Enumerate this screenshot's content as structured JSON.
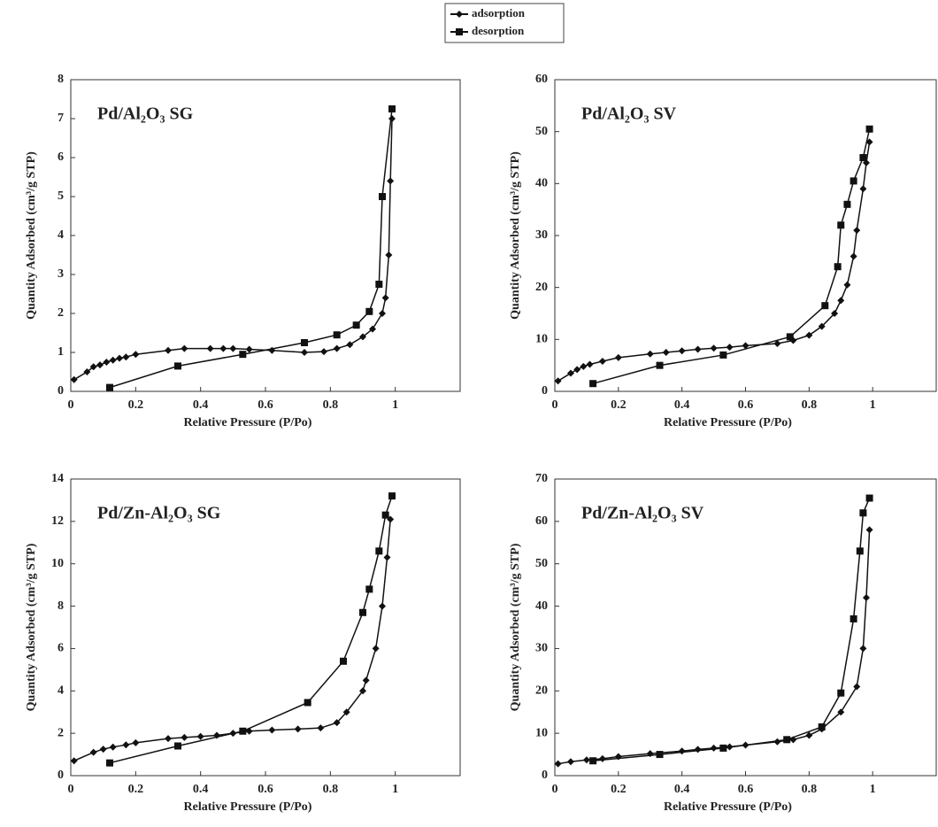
{
  "legend": [
    "adsorption",
    "desorption"
  ],
  "chart_data": [
    {
      "type": "line",
      "title": "Pd/Al₂O₃ SG",
      "x_label": "Relative Pressure (P/Po)",
      "y_label": "Quantity Adsorbed (cm³/g STP)",
      "xlim": [
        0,
        1.2
      ],
      "xticks": [
        0,
        0.2,
        0.4,
        0.6,
        0.8,
        1
      ],
      "ylim": [
        0,
        8
      ],
      "yticks": [
        0,
        1,
        2,
        3,
        4,
        5,
        6,
        7,
        8
      ],
      "series": [
        {
          "name": "adsorption",
          "color": "#111",
          "marker": "diamond",
          "x": [
            0.01,
            0.05,
            0.07,
            0.09,
            0.11,
            0.13,
            0.15,
            0.17,
            0.2,
            0.3,
            0.35,
            0.43,
            0.47,
            0.5,
            0.55,
            0.62,
            0.72,
            0.78,
            0.82,
            0.86,
            0.9,
            0.93,
            0.96,
            0.97,
            0.98,
            0.985,
            0.99
          ],
          "values": [
            0.3,
            0.5,
            0.63,
            0.68,
            0.75,
            0.8,
            0.85,
            0.88,
            0.95,
            1.05,
            1.1,
            1.1,
            1.1,
            1.1,
            1.08,
            1.05,
            1.0,
            1.02,
            1.1,
            1.2,
            1.4,
            1.6,
            2.0,
            2.4,
            3.5,
            5.4,
            7.0
          ]
        },
        {
          "name": "desorption",
          "color": "#111",
          "marker": "square",
          "x": [
            0.12,
            0.33,
            0.53,
            0.72,
            0.82,
            0.88,
            0.92,
            0.95,
            0.96,
            0.99
          ],
          "values": [
            0.1,
            0.65,
            0.95,
            1.25,
            1.45,
            1.7,
            2.05,
            2.75,
            5.0,
            7.25
          ]
        }
      ]
    },
    {
      "type": "line",
      "title": "Pd/Al₂O₃ SV",
      "x_label": "Relative Pressure (P/Po)",
      "y_label": "Quantity Adsorbed (cm³/g STP)",
      "xlim": [
        0,
        1.2
      ],
      "xticks": [
        0,
        0.2,
        0.4,
        0.6,
        0.8,
        1
      ],
      "ylim": [
        0,
        60
      ],
      "yticks": [
        0,
        10,
        20,
        30,
        40,
        50,
        60
      ],
      "series": [
        {
          "name": "adsorption",
          "color": "#111",
          "marker": "diamond",
          "x": [
            0.01,
            0.05,
            0.07,
            0.09,
            0.11,
            0.15,
            0.2,
            0.3,
            0.35,
            0.4,
            0.45,
            0.5,
            0.55,
            0.6,
            0.7,
            0.75,
            0.8,
            0.84,
            0.88,
            0.9,
            0.92,
            0.94,
            0.95,
            0.97,
            0.98,
            0.99
          ],
          "values": [
            2,
            3.5,
            4.2,
            4.8,
            5.2,
            5.8,
            6.5,
            7.2,
            7.5,
            7.8,
            8.1,
            8.3,
            8.5,
            8.8,
            9.2,
            9.8,
            10.8,
            12.5,
            15,
            17.5,
            20.5,
            26,
            31,
            39,
            44,
            48
          ]
        },
        {
          "name": "desorption",
          "color": "#111",
          "marker": "square",
          "x": [
            0.12,
            0.33,
            0.53,
            0.74,
            0.85,
            0.89,
            0.9,
            0.92,
            0.94,
            0.97,
            0.99
          ],
          "values": [
            1.5,
            5,
            7,
            10.5,
            16.5,
            24,
            32,
            36,
            40.5,
            45,
            50.5
          ]
        }
      ]
    },
    {
      "type": "line",
      "title": "Pd/Zn-Al₂O₃ SG",
      "x_label": "Relative Pressure (P/Po)",
      "y_label": "Quantity Adsorbed (cm³/g STP)",
      "xlim": [
        0,
        1.2
      ],
      "xticks": [
        0,
        0.2,
        0.4,
        0.6,
        0.8,
        1
      ],
      "ylim": [
        0,
        14
      ],
      "yticks": [
        0,
        2,
        4,
        6,
        8,
        10,
        12,
        14
      ],
      "series": [
        {
          "name": "adsorption",
          "color": "#111",
          "marker": "diamond",
          "x": [
            0.01,
            0.07,
            0.1,
            0.13,
            0.17,
            0.2,
            0.3,
            0.35,
            0.4,
            0.45,
            0.5,
            0.55,
            0.62,
            0.7,
            0.77,
            0.82,
            0.85,
            0.9,
            0.91,
            0.94,
            0.96,
            0.975,
            0.985
          ],
          "values": [
            0.7,
            1.1,
            1.25,
            1.35,
            1.45,
            1.55,
            1.75,
            1.8,
            1.85,
            1.9,
            2.0,
            2.1,
            2.15,
            2.2,
            2.25,
            2.5,
            3.0,
            4.0,
            4.5,
            6.0,
            8.0,
            10.3,
            12.1
          ]
        },
        {
          "name": "desorption",
          "color": "#111",
          "marker": "square",
          "x": [
            0.12,
            0.33,
            0.53,
            0.73,
            0.84,
            0.9,
            0.92,
            0.95,
            0.97,
            0.99
          ],
          "values": [
            0.6,
            1.4,
            2.1,
            3.45,
            5.4,
            7.7,
            8.8,
            10.6,
            12.3,
            13.2
          ]
        }
      ]
    },
    {
      "type": "line",
      "title": "Pd/Zn-Al₂O₃ SV",
      "x_label": "Relative Pressure (P/Po)",
      "y_label": "Quantity Adsorbed (cm³/g STP)",
      "xlim": [
        0,
        1.2
      ],
      "xticks": [
        0,
        0.2,
        0.4,
        0.6,
        0.8,
        1
      ],
      "ylim": [
        0,
        70
      ],
      "yticks": [
        0,
        10,
        20,
        30,
        40,
        50,
        60,
        70
      ],
      "series": [
        {
          "name": "adsorption",
          "color": "#111",
          "marker": "diamond",
          "x": [
            0.01,
            0.05,
            0.1,
            0.15,
            0.2,
            0.3,
            0.4,
            0.45,
            0.5,
            0.55,
            0.6,
            0.7,
            0.75,
            0.8,
            0.84,
            0.9,
            0.95,
            0.97,
            0.98,
            0.99
          ],
          "values": [
            2.8,
            3.3,
            3.7,
            4.0,
            4.5,
            5.2,
            5.8,
            6.2,
            6.5,
            6.8,
            7.2,
            8.0,
            8.5,
            9.5,
            11,
            15,
            21,
            30,
            42,
            58
          ]
        },
        {
          "name": "desorption",
          "color": "#111",
          "marker": "square",
          "x": [
            0.12,
            0.33,
            0.53,
            0.73,
            0.84,
            0.9,
            0.94,
            0.96,
            0.97,
            0.99
          ],
          "values": [
            3.5,
            5,
            6.5,
            8.5,
            11.5,
            19.5,
            37,
            53,
            62,
            65.5
          ]
        }
      ]
    }
  ]
}
